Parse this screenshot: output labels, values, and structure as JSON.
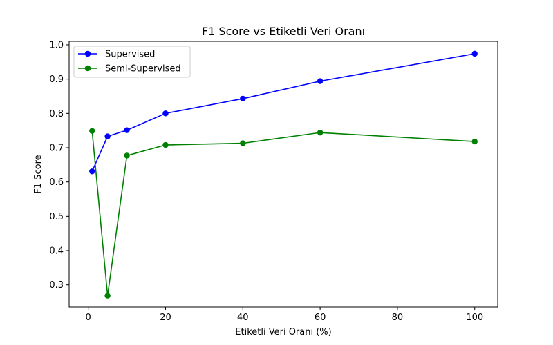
{
  "chart_data": {
    "type": "line",
    "title": "F1 Score vs Etiketli Veri Oranı",
    "xlabel": "Etiketli Veri Oranı (%)",
    "ylabel": "F1 Score",
    "xlim": [
      -4.95,
      105.95
    ],
    "ylim": [
      0.235,
      1.01
    ],
    "xticks": [
      0,
      20,
      40,
      60,
      80,
      100
    ],
    "yticks": [
      0.3,
      0.4,
      0.5,
      0.6,
      0.7,
      0.8,
      0.9,
      1.0
    ],
    "x": [
      1,
      5,
      10,
      20,
      40,
      60,
      100
    ],
    "grid": false,
    "legend_position": "upper-left",
    "series": [
      {
        "name": "Supervised",
        "color": "#0000ff",
        "marker": "circle",
        "values": [
          0.631,
          0.733,
          0.751,
          0.8,
          0.843,
          0.894,
          0.974
        ]
      },
      {
        "name": "Semi-Supervised",
        "color": "#008000",
        "marker": "circle",
        "values": [
          0.749,
          0.268,
          0.677,
          0.708,
          0.713,
          0.744,
          0.718
        ]
      }
    ]
  }
}
